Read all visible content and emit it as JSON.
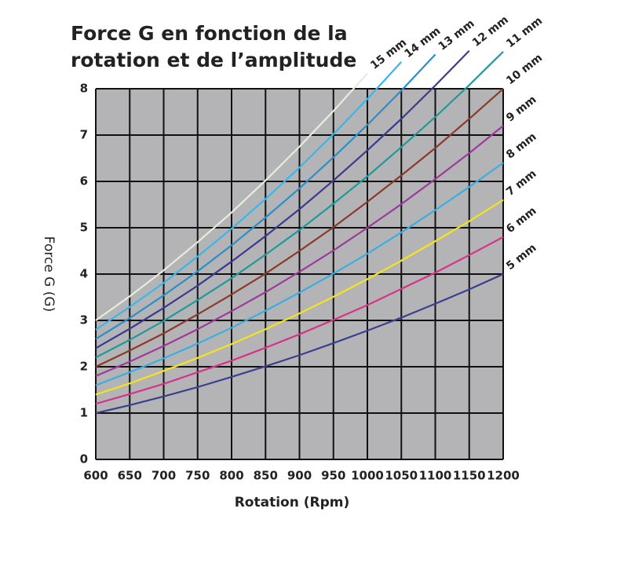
{
  "chart_data": {
    "type": "line",
    "title": "Force G en fonction de la\nrotation et de l’amplitude",
    "x_label": "Rotation (Rpm)",
    "y_label": "Force G (G)",
    "x": [
      600,
      650,
      700,
      750,
      800,
      850,
      900,
      950,
      1000,
      1050,
      1100,
      1150,
      1200
    ],
    "xlim": [
      600,
      1200
    ],
    "xticks": [
      600,
      650,
      700,
      750,
      800,
      850,
      900,
      950,
      1000,
      1050,
      1100,
      1150,
      1200
    ],
    "ylim": [
      0,
      8
    ],
    "yticks": [
      0,
      1,
      2,
      3,
      4,
      5,
      6,
      7,
      8
    ],
    "grid": true,
    "series": [
      {
        "name": "5 mm",
        "color": "#3b3f8f",
        "values": [
          1,
          1.17,
          1.36,
          1.56,
          1.78,
          2.01,
          2.25,
          2.51,
          2.78,
          3.06,
          3.36,
          3.67,
          4
        ]
      },
      {
        "name": "6 mm",
        "color": "#d6338a",
        "values": [
          1.2,
          1.41,
          1.63,
          1.88,
          2.13,
          2.41,
          2.7,
          3.01,
          3.33,
          3.68,
          4.03,
          4.41,
          4.8
        ]
      },
      {
        "name": "7 mm",
        "color": "#f2e51e",
        "values": [
          1.4,
          1.64,
          1.91,
          2.19,
          2.49,
          2.81,
          3.15,
          3.51,
          3.89,
          4.29,
          4.71,
          5.14,
          5.6
        ]
      },
      {
        "name": "8 mm",
        "color": "#3aaee0",
        "values": [
          1.6,
          1.88,
          2.18,
          2.5,
          2.84,
          3.21,
          3.6,
          4.01,
          4.44,
          4.9,
          5.38,
          5.88,
          6.4
        ]
      },
      {
        "name": "9 mm",
        "color": "#9c3a9c",
        "values": [
          1.8,
          2.11,
          2.45,
          2.81,
          3.2,
          3.61,
          4.05,
          4.51,
          5,
          5.51,
          6.05,
          6.61,
          7.2
        ]
      },
      {
        "name": "10 mm",
        "color": "#8b3a2a",
        "values": [
          2,
          2.35,
          2.72,
          3.13,
          3.56,
          4.01,
          4.5,
          5.01,
          5.56,
          6.13,
          6.72,
          7.35,
          8
        ]
      },
      {
        "name": "11 mm",
        "color": "#1f9a9a",
        "values": [
          2.2,
          2.58,
          2.99,
          3.44,
          3.91,
          4.42,
          4.95,
          5.52,
          6.11,
          6.74,
          7.39,
          8.08,
          8.8
        ]
      },
      {
        "name": "12 mm",
        "color": "#3c3a8f",
        "values": [
          2.4,
          2.82,
          3.27,
          3.75,
          4.27,
          4.82,
          5.4,
          6.02,
          6.67,
          7.35,
          8.07,
          8.82,
          null
        ]
      },
      {
        "name": "13 mm",
        "color": "#2a8fc8",
        "values": [
          2.6,
          3.05,
          3.54,
          4.06,
          4.62,
          5.22,
          5.85,
          6.52,
          7.22,
          7.96,
          8.74,
          null,
          null
        ]
      },
      {
        "name": "14 mm",
        "color": "#38b8e8",
        "values": [
          2.8,
          3.29,
          3.81,
          4.38,
          4.98,
          5.62,
          6.3,
          7.02,
          7.78,
          8.58,
          null,
          null,
          null
        ]
      },
      {
        "name": "15 mm",
        "color": "#e4eedd",
        "values": [
          3,
          3.52,
          4.08,
          4.69,
          5.33,
          6.02,
          6.75,
          7.52,
          8.33,
          null,
          null,
          null,
          null
        ]
      }
    ]
  }
}
